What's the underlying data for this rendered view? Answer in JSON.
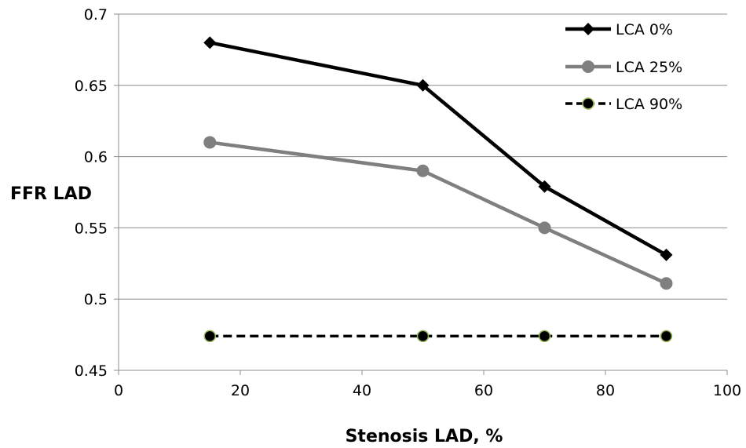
{
  "chart_data": {
    "type": "line",
    "xlabel": "Stenosis LAD, %",
    "ylabel": "FFR LAD",
    "xlim": [
      0,
      100
    ],
    "ylim": [
      0.45,
      0.7
    ],
    "x_ticks": [
      "0",
      "20",
      "40",
      "60",
      "80",
      "100"
    ],
    "y_ticks": [
      "0.45",
      "0.5",
      "0.55",
      "0.6",
      "0.65",
      "0.7"
    ],
    "grid": "horizontal",
    "legend_position": "top-right",
    "series": [
      {
        "name": "LCA 0%",
        "x": [
          15,
          50,
          70,
          90
        ],
        "y": [
          0.68,
          0.65,
          0.579,
          0.531
        ],
        "color": "#000000",
        "marker": "diamond",
        "line_style": "solid"
      },
      {
        "name": "LCA 25%",
        "x": [
          15,
          50,
          70,
          90
        ],
        "y": [
          0.61,
          0.59,
          0.55,
          0.511
        ],
        "color": "#7f7f7f",
        "marker": "circle",
        "line_style": "solid"
      },
      {
        "name": "LCA 90%",
        "x": [
          15,
          50,
          70,
          90
        ],
        "y": [
          0.474,
          0.474,
          0.474,
          0.474
        ],
        "color": "#000000",
        "marker": "circle",
        "line_style": "dashed"
      }
    ]
  }
}
